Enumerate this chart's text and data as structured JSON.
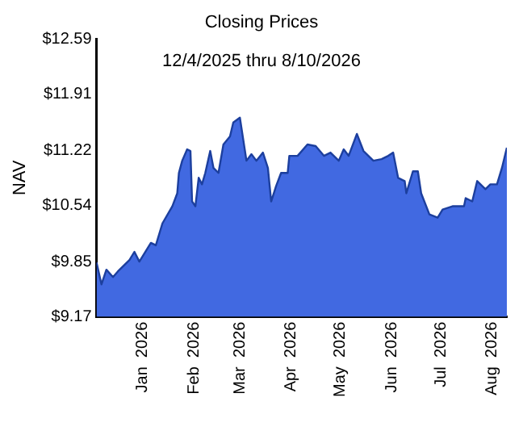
{
  "chart_data": {
    "type": "area",
    "title": "Closing Prices",
    "subtitle": "12/4/2025 thru 8/10/2026",
    "ylabel": "NAV",
    "x": [
      "2025-12-04",
      "2025-12-07",
      "2025-12-10",
      "2025-12-14",
      "2025-12-17",
      "2025-12-24",
      "2025-12-27",
      "2025-12-30",
      "2026-01-06",
      "2026-01-09",
      "2026-01-13",
      "2026-01-19",
      "2026-01-22",
      "2026-01-23",
      "2026-01-25",
      "2026-01-28",
      "2026-01-30",
      "2026-01-31",
      "2026-02-02",
      "2026-02-04",
      "2026-02-06",
      "2026-02-08",
      "2026-02-11",
      "2026-02-13",
      "2026-02-16",
      "2026-02-19",
      "2026-02-23",
      "2026-02-25",
      "2026-03-01",
      "2026-03-05",
      "2026-03-08",
      "2026-03-11",
      "2026-03-15",
      "2026-03-18",
      "2026-03-20",
      "2026-03-23",
      "2026-03-26",
      "2026-03-30",
      "2026-03-31",
      "2026-04-05",
      "2026-04-11",
      "2026-04-16",
      "2026-04-21",
      "2026-04-25",
      "2026-04-30",
      "2026-05-03",
      "2026-05-06",
      "2026-05-11",
      "2026-05-15",
      "2026-05-18",
      "2026-05-21",
      "2026-05-26",
      "2026-05-30",
      "2026-06-02",
      "2026-06-05",
      "2026-06-09",
      "2026-06-10",
      "2026-06-14",
      "2026-06-17",
      "2026-06-19",
      "2026-06-24",
      "2026-06-29",
      "2026-07-02",
      "2026-07-08",
      "2026-07-15",
      "2026-07-16",
      "2026-07-20",
      "2026-07-23",
      "2026-07-28",
      "2026-07-31",
      "2026-08-04",
      "2026-08-07",
      "2026-08-10"
    ],
    "series": [
      {
        "color": "#4169e1",
        "values": [
          9.84,
          9.57,
          9.75,
          9.66,
          9.73,
          9.87,
          9.97,
          9.85,
          10.08,
          10.05,
          10.32,
          10.53,
          10.69,
          10.94,
          11.09,
          11.23,
          11.21,
          10.59,
          10.53,
          10.88,
          10.8,
          10.94,
          11.21,
          11.0,
          10.94,
          11.29,
          11.39,
          11.56,
          11.62,
          11.09,
          11.17,
          11.09,
          11.19,
          11.0,
          10.59,
          10.78,
          10.94,
          10.94,
          11.15,
          11.15,
          11.29,
          11.27,
          11.15,
          11.19,
          11.09,
          11.23,
          11.15,
          11.42,
          11.21,
          11.15,
          11.09,
          11.11,
          11.15,
          11.19,
          10.88,
          10.84,
          10.69,
          10.96,
          10.96,
          10.69,
          10.43,
          10.39,
          10.49,
          10.53,
          10.53,
          10.63,
          10.59,
          10.84,
          10.74,
          10.8,
          10.8,
          11.0,
          11.25
        ]
      }
    ],
    "xlim": [
      "2025-12-04",
      "2026-08-10"
    ],
    "xticks": [
      {
        "value": "2026-01-01",
        "label": "Jan  2026"
      },
      {
        "value": "2026-02-01",
        "label": "Feb  2026"
      },
      {
        "value": "2026-03-01",
        "label": "Mar  2026"
      },
      {
        "value": "2026-04-01",
        "label": "Apr  2026"
      },
      {
        "value": "2026-05-01",
        "label": "May  2026"
      },
      {
        "value": "2026-06-01",
        "label": "Jun  2026"
      },
      {
        "value": "2026-07-01",
        "label": "Jul  2026"
      },
      {
        "value": "2026-08-01",
        "label": "Aug  2026"
      }
    ],
    "ylim": [
      9.17,
      12.59
    ],
    "yticks": [
      {
        "value": 9.17,
        "label": "$9.17"
      },
      {
        "value": 9.85,
        "label": "$9.85"
      },
      {
        "value": 10.54,
        "label": "$10.54"
      },
      {
        "value": 11.22,
        "label": "$11.22"
      },
      {
        "value": 11.91,
        "label": "$11.91"
      },
      {
        "value": 12.59,
        "label": "$12.59"
      }
    ],
    "grid": false,
    "legend": false,
    "marker": "none",
    "line_style": "solid"
  }
}
